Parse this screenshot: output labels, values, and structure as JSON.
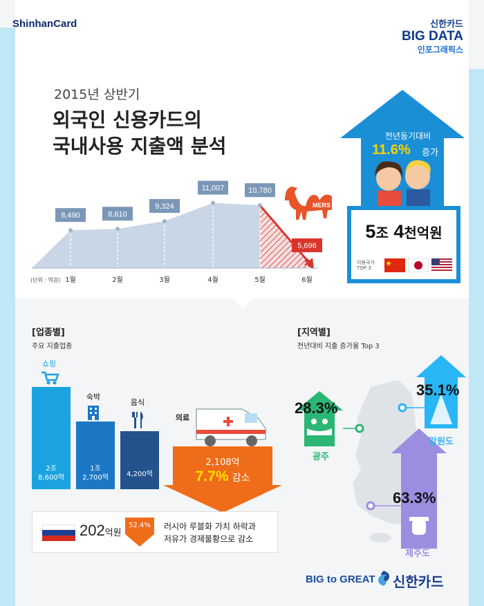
{
  "header": {
    "brand": "ShinhanCard",
    "bigdata_line1": "신한카드",
    "bigdata_line2": "BIG DATA",
    "bigdata_line3": "인포그래픽스"
  },
  "intro": {
    "period": "2015년 상반기",
    "title_line1": "외국인 신용카드의",
    "title_line2": "국내사용 지출액 분석"
  },
  "kpi": {
    "yoy_label": "전년동기대비",
    "yoy_value": "11.6%",
    "yoy_suffix": "증가",
    "total_num1": "5",
    "total_unit1": "조",
    "total_num2": "4",
    "total_unit2": "천억원",
    "top3_label": "이용국가 TOP 3",
    "countries": [
      "china-flag",
      "japan-flag",
      "usa-flag"
    ]
  },
  "monthly": {
    "unit": "(단위 : 억원)",
    "months": [
      "1월",
      "2월",
      "3월",
      "4월",
      "5월",
      "6월"
    ],
    "values": [
      8490,
      8610,
      9324,
      11007,
      10780,
      5696
    ],
    "labels": [
      "8,490",
      "8,610",
      "9,324",
      "11,007",
      "10,780",
      "5,696"
    ],
    "mers_label": "MERS"
  },
  "industry": {
    "title": "[업종별]",
    "subtitle": "주요 지출업종",
    "bars": [
      {
        "name": "쇼핑",
        "line1": "2조",
        "line2": "8,600억",
        "color": "#1aa3e0",
        "icon": "shopping-cart-icon"
      },
      {
        "name": "숙박",
        "line1": "1조",
        "line2": "2,700억",
        "color": "#1c78c4",
        "icon": "hotel-icon"
      },
      {
        "name": "음식",
        "line1": "4,200억",
        "line2": "",
        "color": "#23528c",
        "icon": "fork-knife-icon"
      }
    ],
    "medical": {
      "name": "의료",
      "amount": "2,108억",
      "pct": "7.7%",
      "suffix": "감소",
      "icon": "ambulance-icon"
    },
    "russia": {
      "amount": "202",
      "unit": "억원",
      "pct": "52.4%",
      "text1": "러시아 루블화 가치 하락과",
      "text2": "저유가 경제불황으로 감소",
      "icon": "russia-flag"
    }
  },
  "region": {
    "title": "[지역별]",
    "subtitle": "전년대비 지출 증가율 Top 3",
    "items": [
      {
        "name": "광주",
        "pct": "28.3%",
        "color": "#2bb673",
        "icon": "hot-spring-icon"
      },
      {
        "name": "강원도",
        "pct": "35.1%",
        "color": "#29b6f6",
        "icon": "mountain-icon"
      },
      {
        "name": "제주도",
        "pct": "63.3%",
        "color": "#9b8ee0",
        "icon": "dol-hareubang-icon"
      }
    ]
  },
  "footer": {
    "slogan": "BIG to GREAT",
    "brand": "신한카드"
  }
}
